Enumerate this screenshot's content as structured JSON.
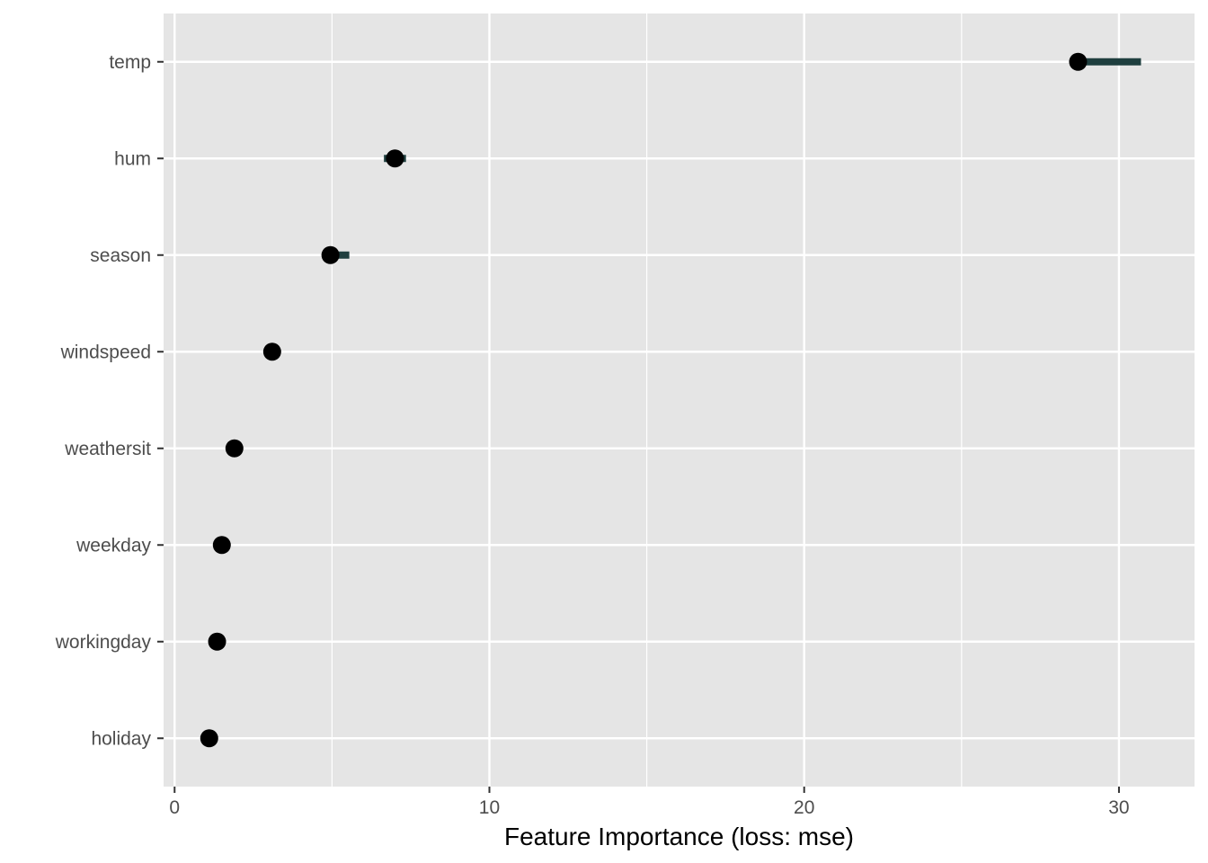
{
  "chart_data": {
    "type": "scatter",
    "xlabel": "Feature Importance (loss: mse)",
    "ylabel": "",
    "xlim": [
      -0.35,
      32.4
    ],
    "x_ticks": [
      0,
      10,
      20,
      30
    ],
    "x_tick_labels": [
      "0",
      "10",
      "20",
      "30"
    ],
    "grid": true,
    "categories": [
      "temp",
      "hum",
      "season",
      "windspeed",
      "weathersit",
      "weekday",
      "workingday",
      "holiday"
    ],
    "values": [
      28.7,
      7.0,
      4.95,
      3.1,
      1.9,
      1.5,
      1.35,
      1.1
    ],
    "interval_low": [
      28.7,
      6.65,
      4.95,
      3.1,
      1.9,
      1.5,
      1.35,
      1.1
    ],
    "interval_high": [
      30.7,
      7.35,
      5.55,
      3.1,
      1.9,
      1.5,
      1.35,
      1.1
    ],
    "colors": {
      "panel": "#e5e5e5",
      "grid": "#ffffff",
      "point": "#000000",
      "interval": "#1f3f3f",
      "tick_text": "#4d4d4d",
      "tick_mark": "#333333"
    }
  }
}
